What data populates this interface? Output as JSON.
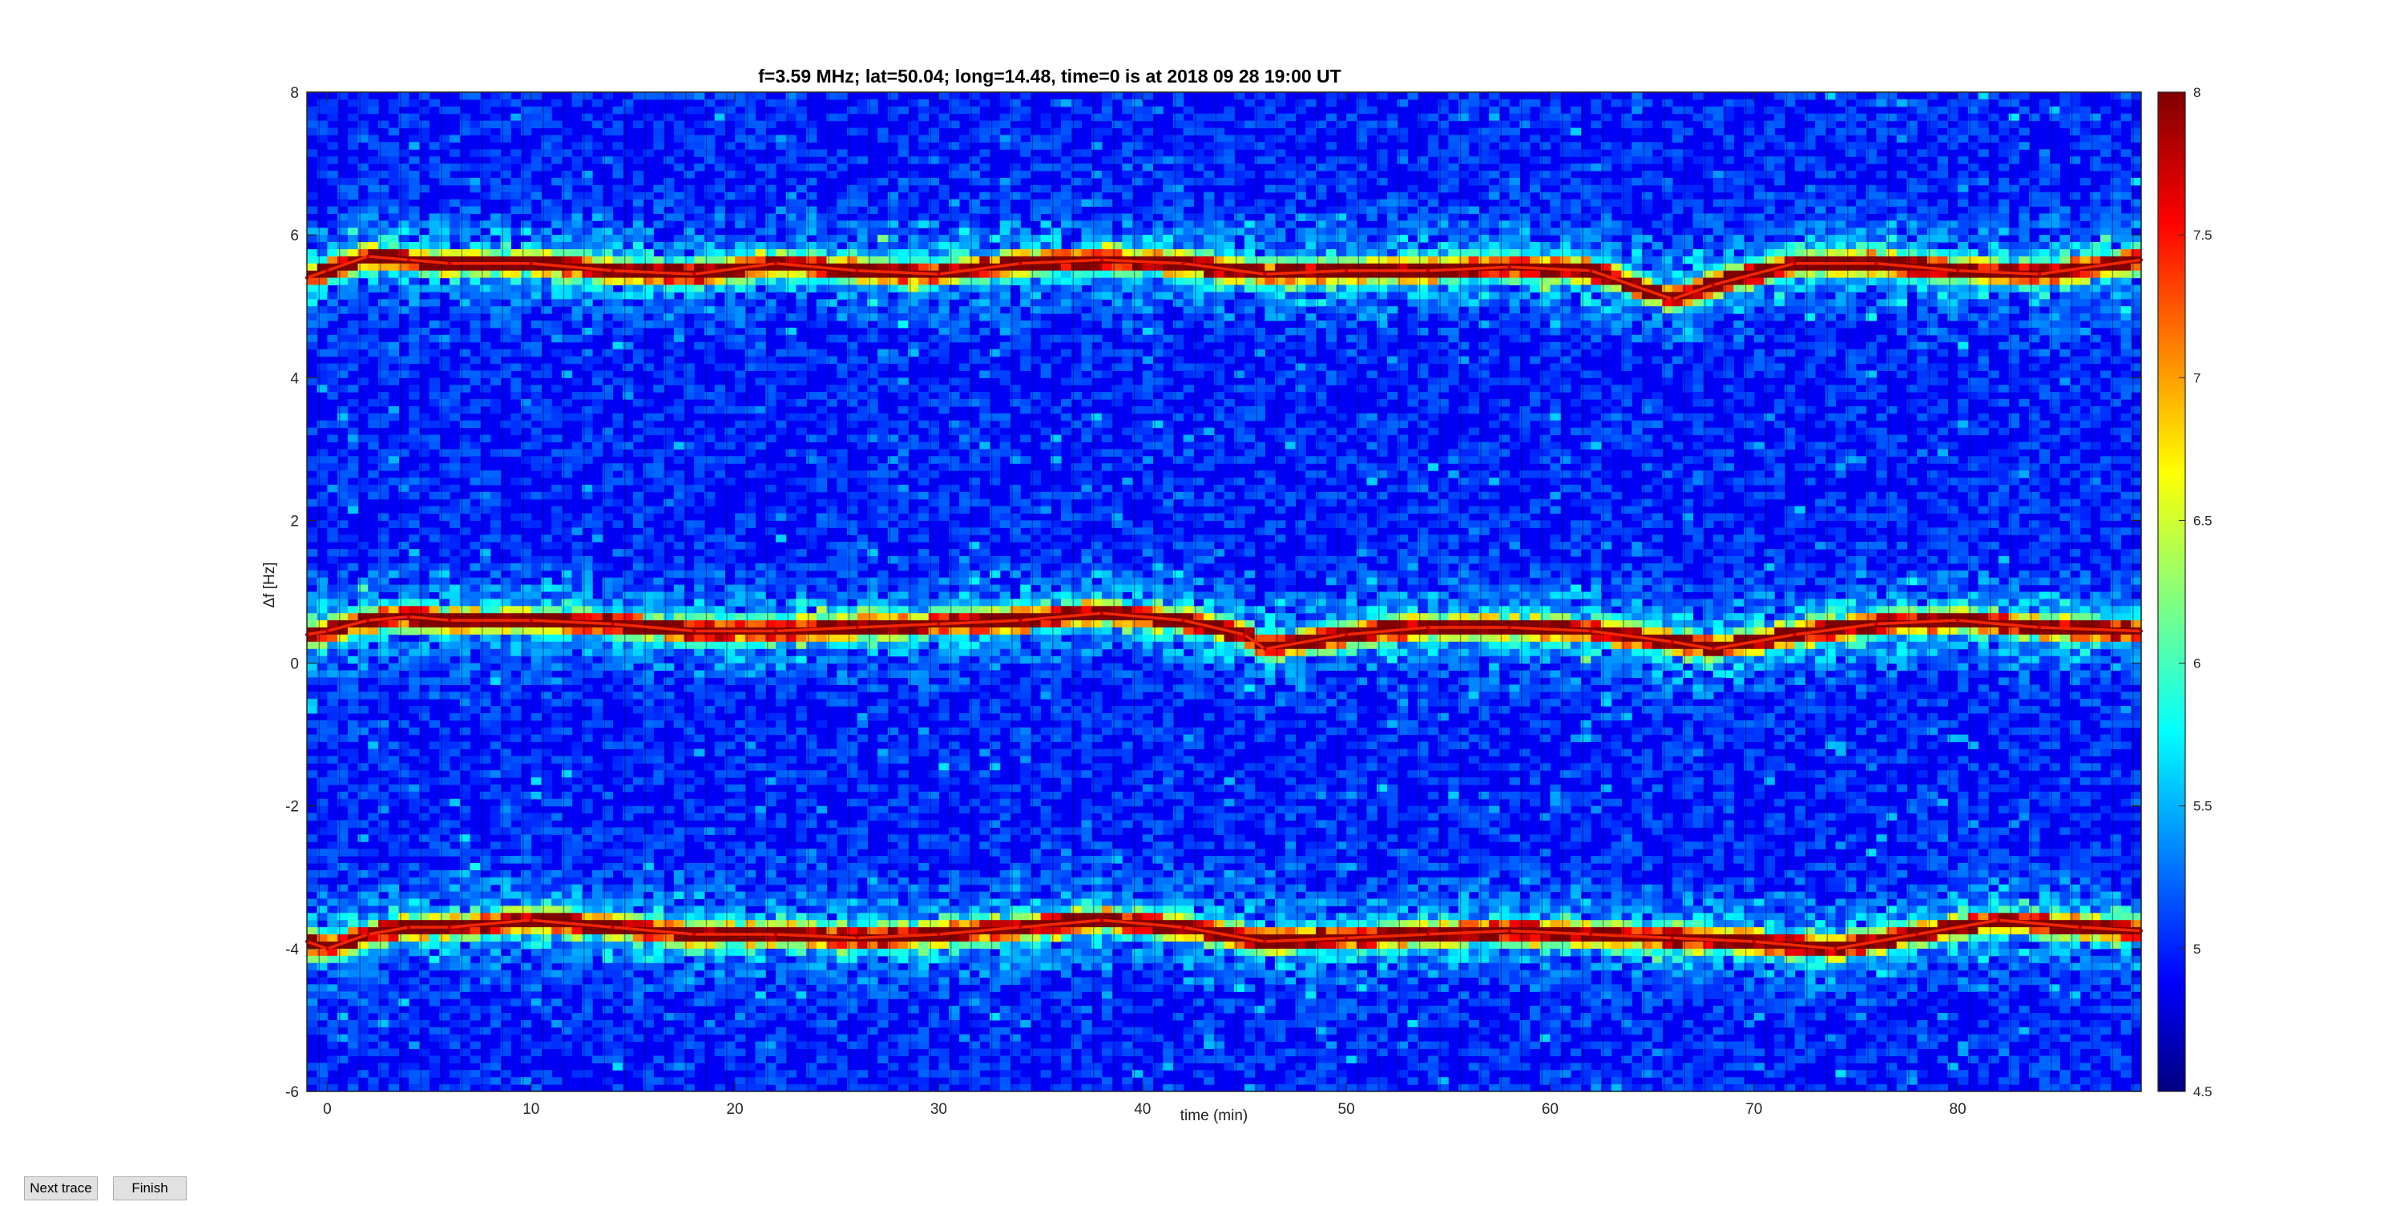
{
  "chart_data": {
    "type": "heatmap",
    "title": "f=3.59 MHz;  lat=50.04; long=14.48, time=0 is at 2018 09 28 19:00 UT",
    "xlabel": "time (min)",
    "ylabel": "Δf [Hz]",
    "xlim": [
      -1,
      89
    ],
    "ylim": [
      -6,
      8
    ],
    "xticks": [
      0,
      10,
      20,
      30,
      40,
      50,
      60,
      70,
      80
    ],
    "yticks": [
      -6,
      -4,
      -2,
      0,
      2,
      4,
      6,
      8
    ],
    "colorbar": {
      "min": 4.5,
      "max": 8,
      "ticks": [
        4.5,
        5,
        5.5,
        6,
        6.5,
        7,
        7.5,
        8
      ],
      "colormap": "jet"
    },
    "background_level": 4.9,
    "series": [
      {
        "x": [
          -1,
          0,
          2,
          4,
          6,
          10,
          14,
          18,
          22,
          26,
          30,
          34,
          38,
          42,
          46,
          50,
          54,
          58,
          62,
          66,
          68,
          72,
          76,
          80,
          84,
          89
        ],
        "y": [
          5.4,
          5.5,
          5.7,
          5.65,
          5.6,
          5.6,
          5.5,
          5.45,
          5.6,
          5.5,
          5.45,
          5.6,
          5.65,
          5.6,
          5.45,
          5.5,
          5.5,
          5.55,
          5.5,
          5.1,
          5.3,
          5.6,
          5.6,
          5.5,
          5.45,
          5.65
        ]
      },
      {
        "x": [
          -1,
          0,
          2,
          4,
          6,
          10,
          14,
          18,
          22,
          26,
          30,
          34,
          38,
          42,
          45,
          46,
          50,
          54,
          58,
          62,
          66,
          68,
          72,
          76,
          80,
          84,
          89
        ],
        "y": [
          0.4,
          0.45,
          0.6,
          0.65,
          0.6,
          0.6,
          0.55,
          0.45,
          0.45,
          0.5,
          0.55,
          0.6,
          0.7,
          0.6,
          0.4,
          0.2,
          0.4,
          0.5,
          0.5,
          0.45,
          0.3,
          0.2,
          0.4,
          0.55,
          0.6,
          0.5,
          0.45
        ]
      },
      {
        "x": [
          -1,
          0,
          2,
          4,
          6,
          10,
          14,
          18,
          22,
          26,
          30,
          34,
          38,
          42,
          46,
          50,
          54,
          58,
          62,
          66,
          70,
          74,
          78,
          82,
          86,
          89
        ],
        "y": [
          -3.9,
          -4.0,
          -3.8,
          -3.7,
          -3.7,
          -3.6,
          -3.7,
          -3.8,
          -3.8,
          -3.85,
          -3.8,
          -3.7,
          -3.6,
          -3.7,
          -3.9,
          -3.85,
          -3.8,
          -3.75,
          -3.8,
          -3.85,
          -3.9,
          -4.0,
          -3.8,
          -3.6,
          -3.7,
          -3.75
        ]
      }
    ]
  },
  "buttons": {
    "next": "Next trace",
    "finish": "Finish"
  }
}
